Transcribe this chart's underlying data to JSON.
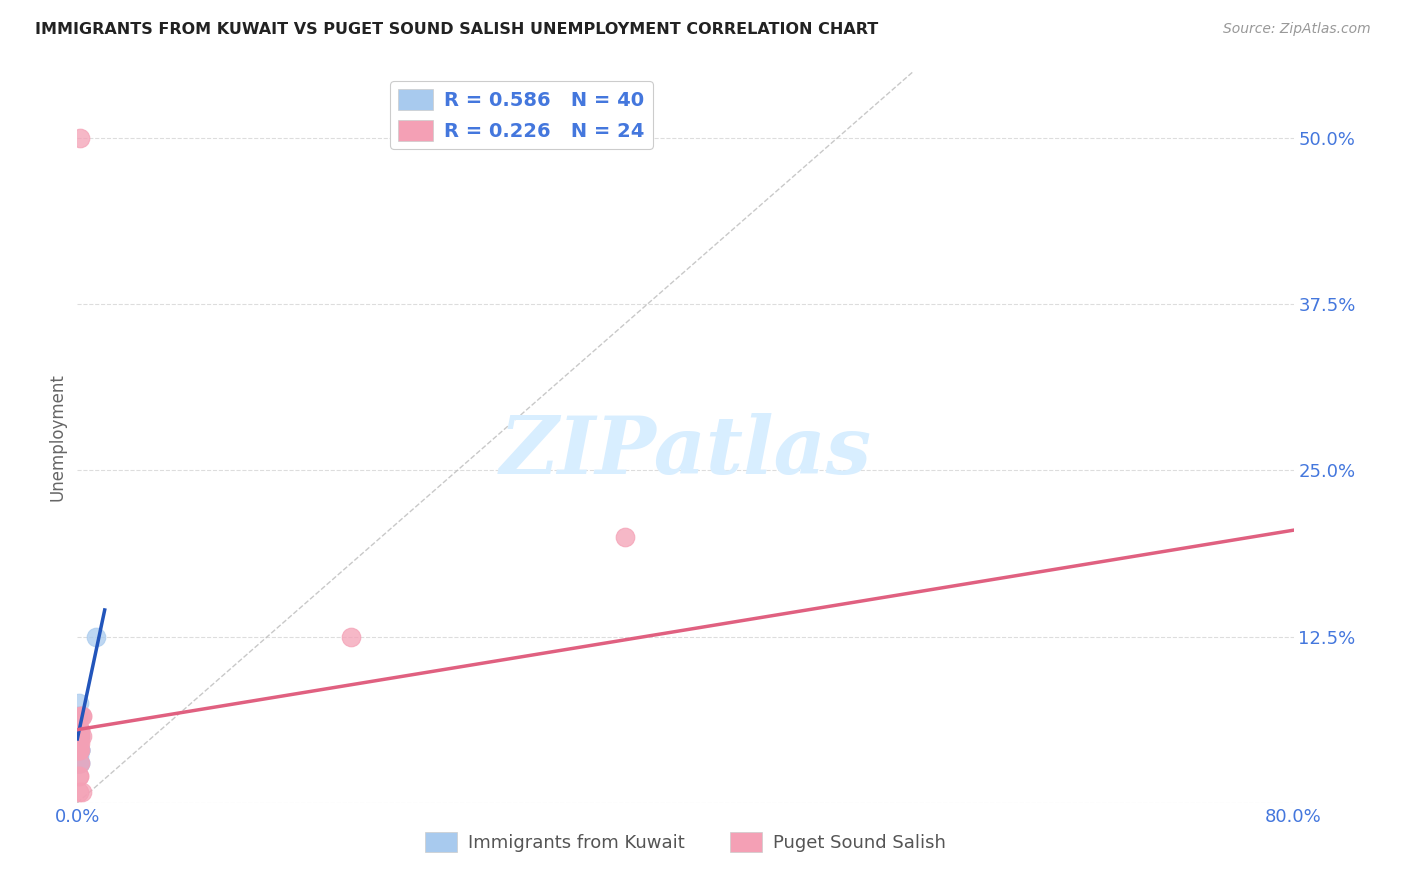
{
  "title": "IMMIGRANTS FROM KUWAIT VS PUGET SOUND SALISH UNEMPLOYMENT CORRELATION CHART",
  "source": "Source: ZipAtlas.com",
  "xlim": [
    0.0,
    0.8
  ],
  "ylim": [
    0.0,
    0.55
  ],
  "ylabel": "Unemployment",
  "blue_color": "#A8CAEE",
  "pink_color": "#F4A0B5",
  "blue_line_color": "#2255BB",
  "pink_line_color": "#E06080",
  "grid_color": "#DDDDDD",
  "diag_color": "#BBBBBB",
  "legend_text_color": "#4477DD",
  "watermark_color": "#D8EEFF",
  "blue_dots_x": [
    0.0005,
    0.001,
    0.0015,
    0.0005,
    0.001,
    0.0005,
    0.001,
    0.0015,
    0.001,
    0.0005,
    0.002,
    0.0015,
    0.001,
    0.0005,
    0.002,
    0.001,
    0.0005,
    0.0015,
    0.001,
    0.0005,
    0.0005,
    0.0005,
    0.001,
    0.001,
    0.0005,
    0.0005,
    0.001,
    0.0005,
    0.0005,
    0.001,
    0.0005,
    0.0005,
    0.0005,
    0.001,
    0.0005,
    0.0015,
    0.0005,
    0.0005,
    0.012,
    0.0005
  ],
  "blue_dots_y": [
    0.065,
    0.075,
    0.04,
    0.05,
    0.03,
    0.06,
    0.04,
    0.05,
    0.03,
    0.04,
    0.03,
    0.04,
    0.05,
    0.055,
    0.03,
    0.04,
    0.05,
    0.04,
    0.03,
    0.05,
    0.04,
    0.03,
    0.04,
    0.05,
    0.04,
    0.04,
    0.05,
    0.03,
    0.04,
    0.03,
    0.055,
    0.065,
    0.045,
    0.035,
    0.03,
    0.04,
    0.03,
    0.04,
    0.125,
    0.05
  ],
  "pink_dots_x": [
    0.002,
    0.0015,
    0.0005,
    0.001,
    0.003,
    0.0015,
    0.002,
    0.001,
    0.003,
    0.0015,
    0.002,
    0.001,
    0.003,
    0.0015,
    0.001,
    0.0005,
    0.001,
    0.001,
    0.002,
    0.001,
    0.001,
    0.003,
    0.36,
    0.18
  ],
  "pink_dots_y": [
    0.5,
    0.065,
    0.04,
    0.05,
    0.065,
    0.055,
    0.055,
    0.04,
    0.065,
    0.05,
    0.04,
    0.045,
    0.05,
    0.045,
    0.04,
    0.04,
    0.045,
    0.02,
    0.03,
    0.02,
    0.008,
    0.008,
    0.2,
    0.125
  ],
  "blue_line_x": [
    0.0,
    0.018
  ],
  "blue_line_y": [
    0.048,
    0.145
  ],
  "pink_line_x": [
    0.0,
    0.8
  ],
  "pink_line_y": [
    0.055,
    0.205
  ],
  "diag_line_x": [
    0.0,
    0.55
  ],
  "diag_line_y": [
    0.0,
    0.55
  ],
  "yticks": [
    0.0,
    0.125,
    0.25,
    0.375,
    0.5
  ],
  "ytick_labels": [
    "",
    "12.5%",
    "25.0%",
    "37.5%",
    "50.0%"
  ],
  "xticks": [
    0.0,
    0.2,
    0.4,
    0.6,
    0.8
  ],
  "xtick_labels": [
    "0.0%",
    "",
    "",
    "",
    "80.0%"
  ]
}
